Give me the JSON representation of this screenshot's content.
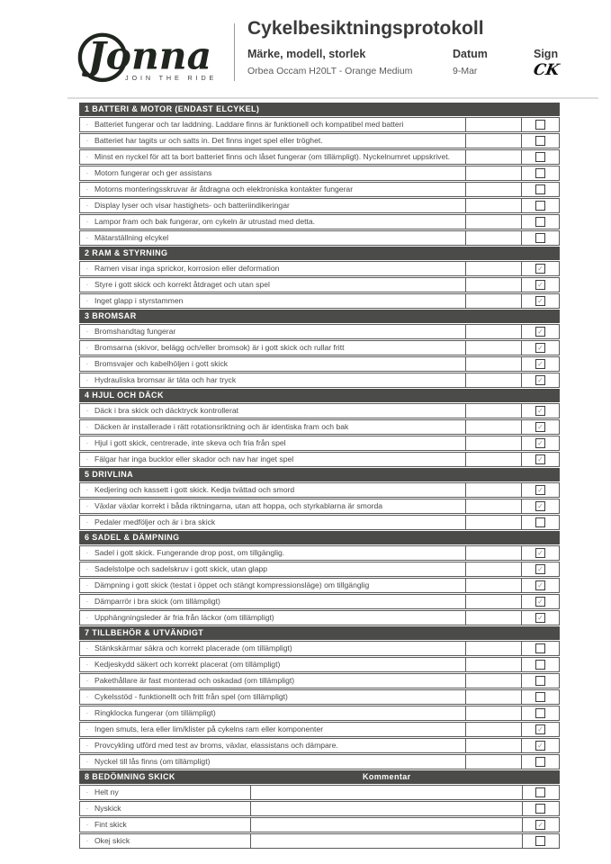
{
  "header": {
    "logo_name": "Jonna",
    "logo_tagline": "JOIN THE RIDE",
    "title": "Cykelbesiktningsprotokoll",
    "field_label": "Märke, modell, storlek",
    "field_value": "Orbea Occam H20LT - Orange Medium",
    "datum_label": "Datum",
    "datum_value": "9-Mar",
    "sign_label": "Sign",
    "sign_value": "CK"
  },
  "colors": {
    "section_header_bg": "#4b4b49",
    "section_header_text": "#ffffff",
    "row_border": "#5a5a5a",
    "logo_ink": "#20261f",
    "check_mark": "#8f8f8f"
  },
  "checkmark_glyph": "✓",
  "bullet_glyph": "·",
  "sections": [
    {
      "title": "1 BATTERI & MOTOR (ENDAST ELCYKEL)",
      "items": [
        {
          "text": "Batteriet fungerar och tar laddning.  Laddare finns är funktionell och kompatibel med batteri",
          "checked": false
        },
        {
          "text": "Batteriet har tagits ur och satts in. Det finns inget spel eller tröghet.",
          "checked": false
        },
        {
          "text": "Minst en nyckel för att ta bort batteriet finns och låset fungerar (om tillämpligt). Nyckelnumret uppskrivet.",
          "checked": false
        },
        {
          "text": "Motorn fungerar och ger assistans",
          "checked": false
        },
        {
          "text": "Motorns monteringsskruvar är åtdragna och elektroniska kontakter fungerar",
          "checked": false
        },
        {
          "text": "Display lyser och visar hastighets- och batteriindikeringar",
          "checked": false
        },
        {
          "text": "Lampor fram och bak fungerar, om cykeln är utrustad med detta.",
          "checked": false
        },
        {
          "text": "Mätarställning elcykel",
          "checked": false
        }
      ]
    },
    {
      "title": "2 RAM & STYRNING",
      "items": [
        {
          "text": "Ramen visar inga sprickor, korrosion eller deformation",
          "checked": true
        },
        {
          "text": "Styre i gott skick och korrekt åtdraget och utan spel",
          "checked": true
        },
        {
          "text": "Inget glapp i styrstammen",
          "checked": true
        }
      ]
    },
    {
      "title": "3 BROMSAR",
      "items": [
        {
          "text": "Bromshandtag fungerar",
          "checked": true
        },
        {
          "text": "Bromsarna (skivor, belägg och/eller bromsok) är i gott skick och rullar fritt",
          "checked": true
        },
        {
          "text": "Bromsvajer och kabelhöljen i gott skick",
          "checked": true
        },
        {
          "text": "Hydrauliska bromsar är täta och har tryck",
          "checked": true
        }
      ]
    },
    {
      "title": "4 HJUL OCH DÄCK",
      "items": [
        {
          "text": "Däck i bra skick och däcktryck kontrollerat",
          "checked": true
        },
        {
          "text": "Däcken är  installerade i rätt rotationsriktning och är identiska fram och bak",
          "checked": true
        },
        {
          "text": "Hjul i gott skick, centrerade, inte skeva och fria från spel",
          "checked": true
        },
        {
          "text": "Fälgar har inga bucklor eller skador och nav har inget spel",
          "checked": true
        }
      ]
    },
    {
      "title": "5 DRIVLINA",
      "items": [
        {
          "text": "Kedjering och kassett i gott skick. Kedja tvättad och smord",
          "checked": true
        },
        {
          "text": "Växlar växlar korrekt i båda riktningarna, utan att hoppa, och styrkablarna är smorda",
          "checked": true
        },
        {
          "text": "Pedaler medföljer och är i bra skick",
          "checked": false
        }
      ]
    },
    {
      "title": "6 SADEL & DÄMPNING",
      "items": [
        {
          "text": "Sadel i gott skick. Fungerande drop post, om tillgänglig.",
          "checked": true
        },
        {
          "text": "Sadelstolpe och sadelskruv i gott skick, utan glapp",
          "checked": true
        },
        {
          "text": "Dämpning i gott skick (testat i öppet och stängt kompressionsläge) om tillgänglig",
          "checked": true
        },
        {
          "text": "Dämparrör i bra skick (om tillämpligt)",
          "checked": true
        },
        {
          "text": "Upphängningsleder är fria från läckor (om tillämpligt)",
          "checked": true
        }
      ]
    },
    {
      "title": "7 TILLBEHÖR & UTVÄNDIGT",
      "items": [
        {
          "text": "Stänkskärmar säkra och korrekt placerade (om tillämpligt)",
          "checked": false
        },
        {
          "text": "Kedjeskydd säkert och korrekt placerat (om tillämpligt)",
          "checked": false
        },
        {
          "text": "Pakethållare är fast monterad och oskadad (om tillämpligt)",
          "checked": false
        },
        {
          "text": "Cykelsstöd - funktionellt och fritt från spel (om tillämpligt)",
          "checked": false
        },
        {
          "text": "Ringklocka fungerar (om tillämpligt)",
          "checked": false
        },
        {
          "text": "Ingen smuts, lera eller lim/klister på cykelns ram eller komponenter",
          "checked": true
        },
        {
          "text": "Provcykling utförd med test av broms, växlar, elassistans och dämpare.",
          "checked": true
        },
        {
          "text": "Nyckel till lås finns (om tillämpligt)",
          "checked": false
        }
      ]
    },
    {
      "title": "8 BEDÖMNING SKICK",
      "comment_header": "Kommentar",
      "items": [
        {
          "text": "Helt ny",
          "comment": "",
          "checked": false
        },
        {
          "text": "Nyskick",
          "comment": "",
          "checked": false
        },
        {
          "text": "Fint skick",
          "comment": "",
          "checked": true
        },
        {
          "text": "Okej skick",
          "comment": "",
          "checked": false
        }
      ]
    }
  ]
}
